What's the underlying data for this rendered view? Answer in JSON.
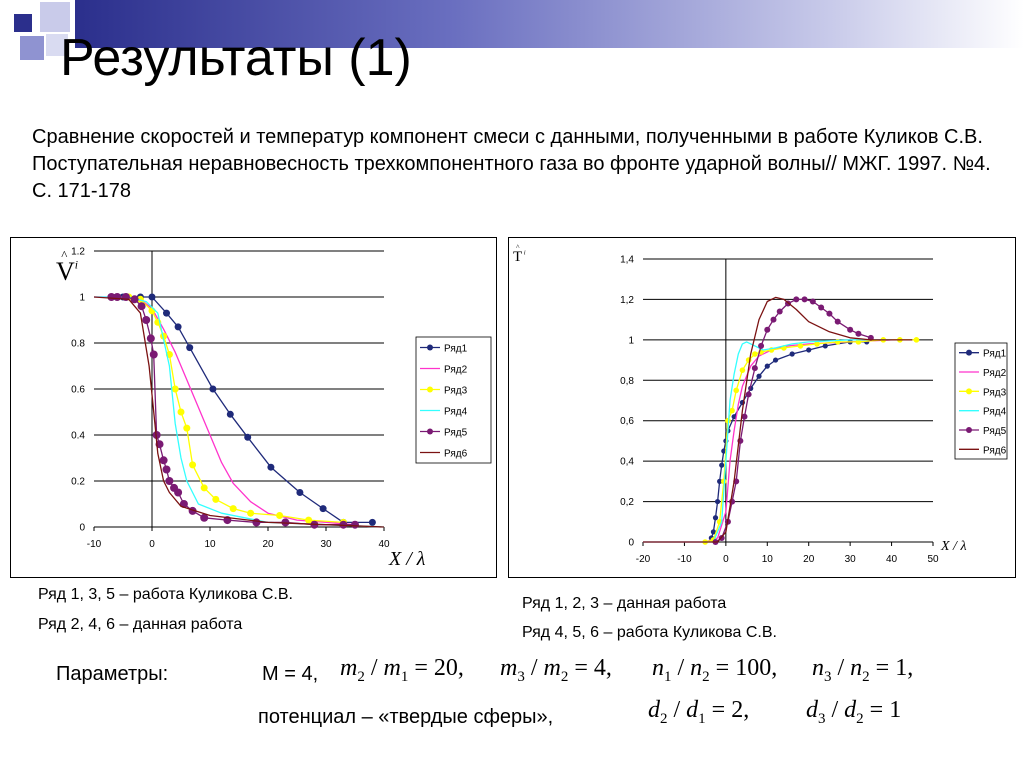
{
  "slide": {
    "title": "Результаты (1)",
    "subtitle": "Сравнение скоростей и температур компонент смеси с данными, полученными в работе Куликов С.В. Поступательная неравновесность трехкомпонентного газа во фронте ударной волны// МЖГ. 1997. №4. С. 171-178",
    "left_note_1": "Ряд 1, 3, 5 – работа Куликова С.В.",
    "left_note_2": "Ряд 2, 4, 6 – данная работа",
    "right_note_1": "Ряд 1, 2, 3 – данная работа",
    "right_note_2": "Ряд 4, 5, 6 – работа Куликова С.В.",
    "params_label": "Параметры:",
    "m_eq": "М = 4,",
    "potential": "потенциал – «твердые сферы»,",
    "formula1": [
      "m",
      "2",
      " / ",
      "m",
      "1",
      " = 20,"
    ],
    "formula2": [
      "m",
      "3",
      " / ",
      "m",
      "2",
      " = 4,"
    ],
    "formula3": [
      "n",
      "1",
      " / ",
      "n",
      "2",
      " = 100,"
    ],
    "formula4": [
      "n",
      "3",
      " / ",
      "n",
      "2",
      " = 1,"
    ],
    "formula5": [
      "d",
      "2",
      " / ",
      "d",
      "1",
      " = 2,"
    ],
    "formula6": [
      "d",
      "3",
      " / ",
      "d",
      "2",
      " = 1"
    ],
    "decor_colors": {
      "bar": "#2b2f8c",
      "sq_dark": "#2b2f8c",
      "sq_mid": "#8f93d1",
      "sq_light": "#d3d5ef"
    }
  },
  "chart_data": [
    {
      "type": "line",
      "ylabel": "V",
      "ylabel_sup": "i",
      "xlabel": "X / λ",
      "xlim": [
        -10,
        40
      ],
      "ylim": [
        0,
        1.2
      ],
      "x_ticks": [
        "-10",
        "0",
        "10",
        "20",
        "30",
        "40"
      ],
      "y_ticks": [
        "0",
        "0.2",
        "0.4",
        "0.6",
        "0.8",
        "1",
        "1.2"
      ],
      "grid": true,
      "legend_position": "right",
      "series": [
        {
          "name": "Ряд1",
          "color": "#1f2a7a",
          "markers": true,
          "marker_size": 3.5,
          "points": [
            [
              -7,
              1
            ],
            [
              -5,
              1
            ],
            [
              -2,
              1
            ],
            [
              0,
              1
            ],
            [
              2.5,
              0.93
            ],
            [
              4.5,
              0.87
            ],
            [
              6.5,
              0.78
            ],
            [
              10.5,
              0.6
            ],
            [
              13.5,
              0.49
            ],
            [
              16.5,
              0.39
            ],
            [
              20.5,
              0.26
            ],
            [
              25.5,
              0.15
            ],
            [
              29.5,
              0.08
            ],
            [
              33,
              0.02
            ],
            [
              38,
              0.02
            ]
          ]
        },
        {
          "name": "Ряд2",
          "color": "#ff33cc",
          "markers": false,
          "points": [
            [
              -10,
              1
            ],
            [
              -5,
              1
            ],
            [
              -2,
              0.99
            ],
            [
              0,
              0.95
            ],
            [
              2,
              0.86
            ],
            [
              4,
              0.76
            ],
            [
              6,
              0.64
            ],
            [
              8,
              0.52
            ],
            [
              10,
              0.4
            ],
            [
              12,
              0.28
            ],
            [
              14,
              0.19
            ],
            [
              17,
              0.11
            ],
            [
              20,
              0.06
            ],
            [
              25,
              0.03
            ],
            [
              30,
              0.02
            ],
            [
              35,
              0.01
            ]
          ]
        },
        {
          "name": "Ряд3",
          "color": "#ffff00",
          "markers": true,
          "marker_size": 3.5,
          "points": [
            [
              -6,
              1
            ],
            [
              -4,
              1
            ],
            [
              -2,
              0.99
            ],
            [
              0,
              0.94
            ],
            [
              1,
              0.89
            ],
            [
              2,
              0.83
            ],
            [
              3,
              0.75
            ],
            [
              4,
              0.6
            ],
            [
              5,
              0.5
            ],
            [
              6,
              0.43
            ],
            [
              7,
              0.27
            ],
            [
              9,
              0.17
            ],
            [
              11,
              0.12
            ],
            [
              14,
              0.08
            ],
            [
              17,
              0.06
            ],
            [
              22,
              0.05
            ],
            [
              27,
              0.03
            ],
            [
              33,
              0.02
            ]
          ]
        },
        {
          "name": "Ряд4",
          "color": "#33ffff",
          "markers": false,
          "points": [
            [
              -10,
              1
            ],
            [
              -4,
              1
            ],
            [
              -1,
              0.98
            ],
            [
              1,
              0.93
            ],
            [
              3,
              0.7
            ],
            [
              4,
              0.45
            ],
            [
              5,
              0.3
            ],
            [
              6,
              0.2
            ],
            [
              8,
              0.1
            ],
            [
              12,
              0.06
            ],
            [
              20,
              0.02
            ],
            [
              30,
              0.01
            ],
            [
              40,
              0
            ]
          ]
        },
        {
          "name": "Ряд5",
          "color": "#7a1a73",
          "markers": true,
          "marker_size": 4,
          "points": [
            [
              -7,
              1
            ],
            [
              -6,
              1
            ],
            [
              -4.5,
              1
            ],
            [
              -3,
              0.99
            ],
            [
              -1.8,
              0.96
            ],
            [
              -1,
              0.9
            ],
            [
              -0.2,
              0.82
            ],
            [
              0.3,
              0.75
            ],
            [
              0.8,
              0.4
            ],
            [
              1.3,
              0.36
            ],
            [
              2,
              0.29
            ],
            [
              2.5,
              0.25
            ],
            [
              3,
              0.2
            ],
            [
              3.8,
              0.17
            ],
            [
              4.5,
              0.15
            ],
            [
              5.5,
              0.1
            ],
            [
              7,
              0.07
            ],
            [
              9,
              0.04
            ],
            [
              13,
              0.03
            ],
            [
              18,
              0.02
            ],
            [
              23,
              0.02
            ],
            [
              28,
              0.01
            ],
            [
              33,
              0.01
            ],
            [
              35,
              0.01
            ]
          ]
        },
        {
          "name": "Ряд6",
          "color": "#7b1212",
          "markers": false,
          "points": [
            [
              -10,
              1
            ],
            [
              -4,
              0.99
            ],
            [
              -2,
              0.93
            ],
            [
              -0.5,
              0.7
            ],
            [
              0.5,
              0.45
            ],
            [
              1,
              0.32
            ],
            [
              2,
              0.2
            ],
            [
              3,
              0.15
            ],
            [
              5,
              0.09
            ],
            [
              10,
              0.05
            ],
            [
              20,
              0.02
            ],
            [
              30,
              0.01
            ],
            [
              40,
              0
            ]
          ]
        }
      ]
    },
    {
      "type": "line",
      "ylabel": "T",
      "ylabel_sup": "i",
      "xlabel": "X / λ",
      "xlim": [
        -20,
        50
      ],
      "ylim": [
        0,
        1.4
      ],
      "x_ticks": [
        "-20",
        "-10",
        "0",
        "10",
        "20",
        "30",
        "40",
        "50"
      ],
      "y_ticks": [
        "0",
        "0,2",
        "0,4",
        "0,6",
        "0,8",
        "1",
        "1,2",
        "1,4"
      ],
      "grid": true,
      "legend_position": "right",
      "series": [
        {
          "name": "Ряд1",
          "color": "#1f2a7a",
          "markers": true,
          "marker_size": 2.6,
          "points": [
            [
              -3.5,
              0.02
            ],
            [
              -3,
              0.05
            ],
            [
              -2.5,
              0.12
            ],
            [
              -2,
              0.2
            ],
            [
              -1.5,
              0.3
            ],
            [
              -1,
              0.38
            ],
            [
              -0.5,
              0.45
            ],
            [
              0,
              0.5
            ],
            [
              0.5,
              0.55
            ],
            [
              2,
              0.62
            ],
            [
              4,
              0.69
            ],
            [
              6,
              0.76
            ],
            [
              8,
              0.82
            ],
            [
              10,
              0.87
            ],
            [
              12,
              0.9
            ],
            [
              16,
              0.93
            ],
            [
              20,
              0.95
            ],
            [
              24,
              0.97
            ],
            [
              30,
              0.99
            ],
            [
              34,
              0.99
            ]
          ]
        },
        {
          "name": "Ряд2",
          "color": "#ff33cc",
          "markers": false,
          "points": [
            [
              -20,
              0
            ],
            [
              -5,
              0
            ],
            [
              -2,
              0.02
            ],
            [
              0,
              0.15
            ],
            [
              1,
              0.4
            ],
            [
              2,
              0.55
            ],
            [
              3,
              0.68
            ],
            [
              4,
              0.77
            ],
            [
              6,
              0.87
            ],
            [
              8,
              0.92
            ],
            [
              11,
              0.95
            ],
            [
              15,
              0.97
            ],
            [
              20,
              0.98
            ],
            [
              30,
              0.99
            ],
            [
              40,
              1
            ]
          ]
        },
        {
          "name": "Ряд3",
          "color": "#ffff00",
          "markers": true,
          "marker_size": 2.8,
          "points": [
            [
              -5,
              0
            ],
            [
              -3,
              0.01
            ],
            [
              -1.5,
              0.1
            ],
            [
              -0.5,
              0.3
            ],
            [
              0.5,
              0.6
            ],
            [
              1.5,
              0.65
            ],
            [
              2.5,
              0.75
            ],
            [
              4,
              0.85
            ],
            [
              5.5,
              0.9
            ],
            [
              7,
              0.93
            ],
            [
              8.5,
              0.94
            ],
            [
              11,
              0.95
            ],
            [
              14,
              0.96
            ],
            [
              18,
              0.97
            ],
            [
              22,
              0.98
            ],
            [
              27,
              0.99
            ],
            [
              32,
              0.99
            ],
            [
              38,
              1
            ],
            [
              42,
              1
            ],
            [
              46,
              1
            ]
          ]
        },
        {
          "name": "Ряд4",
          "color": "#33ffff",
          "markers": false,
          "points": [
            [
              -20,
              0
            ],
            [
              -3,
              0
            ],
            [
              -1,
              0.1
            ],
            [
              0,
              0.4
            ],
            [
              1,
              0.7
            ],
            [
              2,
              0.83
            ],
            [
              3,
              0.93
            ],
            [
              4,
              0.98
            ],
            [
              5,
              0.99
            ],
            [
              7,
              0.97
            ],
            [
              9,
              0.95
            ],
            [
              12,
              0.96
            ],
            [
              16,
              0.98
            ],
            [
              20,
              0.99
            ],
            [
              30,
              1
            ],
            [
              40,
              1
            ]
          ]
        },
        {
          "name": "Ряд5",
          "color": "#7a1a73",
          "markers": true,
          "marker_size": 3,
          "points": [
            [
              -2.5,
              0
            ],
            [
              -1,
              0.02
            ],
            [
              0.5,
              0.1
            ],
            [
              1.5,
              0.2
            ],
            [
              2.5,
              0.3
            ],
            [
              3.5,
              0.5
            ],
            [
              4.5,
              0.62
            ],
            [
              5.5,
              0.73
            ],
            [
              7,
              0.86
            ],
            [
              8.5,
              0.97
            ],
            [
              10,
              1.05
            ],
            [
              11.5,
              1.1
            ],
            [
              13,
              1.14
            ],
            [
              15,
              1.18
            ],
            [
              17,
              1.2
            ],
            [
              19,
              1.2
            ],
            [
              21,
              1.19
            ],
            [
              23,
              1.16
            ],
            [
              25,
              1.13
            ],
            [
              27,
              1.09
            ],
            [
              30,
              1.05
            ],
            [
              32,
              1.03
            ],
            [
              35,
              1.01
            ]
          ]
        },
        {
          "name": "Ряд6",
          "color": "#7b1212",
          "markers": false,
          "points": [
            [
              -20,
              0
            ],
            [
              -2,
              0
            ],
            [
              0,
              0.05
            ],
            [
              2,
              0.3
            ],
            [
              4,
              0.65
            ],
            [
              6,
              0.93
            ],
            [
              8,
              1.1
            ],
            [
              10,
              1.19
            ],
            [
              12,
              1.21
            ],
            [
              14,
              1.2
            ],
            [
              17,
              1.15
            ],
            [
              20,
              1.09
            ],
            [
              25,
              1.04
            ],
            [
              30,
              1.01
            ],
            [
              35,
              1
            ],
            [
              45,
              1
            ]
          ]
        }
      ]
    }
  ]
}
